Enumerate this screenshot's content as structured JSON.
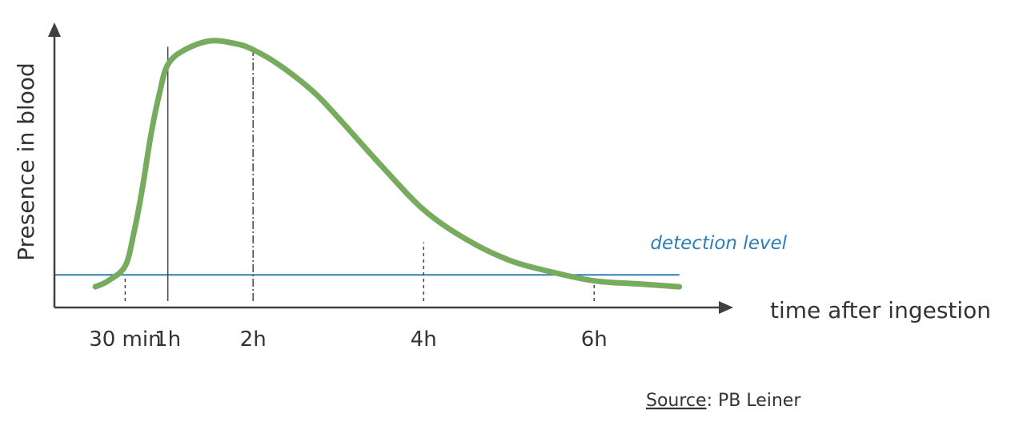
{
  "chart_data": {
    "type": "line",
    "title": "",
    "xlabel": "time after ingestion",
    "ylabel": "Presence  in blood",
    "xlim": [
      -0.33,
      7.5
    ],
    "ylim": [
      0,
      1
    ],
    "grid": false,
    "ticks": [
      {
        "label": "30 min",
        "x": 0.5,
        "line_top": 0.1,
        "style": "dashed"
      },
      {
        "label": "1h",
        "x": 1,
        "line_top": 0.88,
        "style": "solid"
      },
      {
        "label": "2h",
        "x": 2,
        "line_top": 0.88,
        "style": "dashdot"
      },
      {
        "label": "4h",
        "x": 4,
        "line_top": 0.22,
        "style": "dashed"
      },
      {
        "label": "6h",
        "x": 6,
        "line_top": 0.11,
        "style": "dashed"
      }
    ],
    "series": [
      {
        "color": "#77ac5f",
        "x": [
          0.15,
          0.3,
          0.5,
          0.6,
          0.7,
          0.8,
          0.9,
          1.0,
          1.2,
          1.5,
          1.8,
          2.0,
          2.3,
          2.7,
          3.0,
          3.5,
          4.0,
          4.5,
          5.0,
          5.5,
          6.0,
          6.5,
          7.0
        ],
        "y": [
          0.07,
          0.09,
          0.14,
          0.25,
          0.4,
          0.58,
          0.72,
          0.82,
          0.87,
          0.9,
          0.89,
          0.87,
          0.82,
          0.73,
          0.64,
          0.48,
          0.33,
          0.23,
          0.16,
          0.12,
          0.09,
          0.08,
          0.07
        ]
      }
    ],
    "reference_line": {
      "y": 0.11,
      "label": "detection level",
      "color": "#2e7fb4"
    },
    "source_label": "Source",
    "source_text": ": PB Leiner"
  }
}
